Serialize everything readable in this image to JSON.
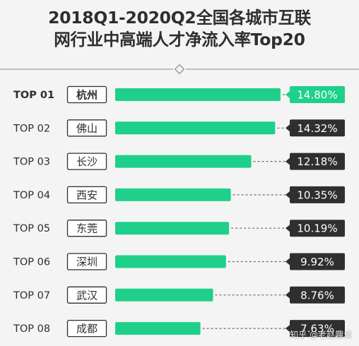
{
  "title": {
    "line1": "2018Q1-2020Q2全国各城市互联",
    "line2": "网行业中高端人才净流入率Top20"
  },
  "watermark": "知乎 @老赵趣谈",
  "colors": {
    "bar": "#1ed08a",
    "bar_highlight": "#1ed08a",
    "value_box": "#2f2f2f",
    "value_box_highlight": "#1ed08a",
    "city_box_border": "#2f2f2f",
    "dashed_line": "#6a6a6a",
    "background": "#f4f4f4"
  },
  "chart_data": {
    "type": "bar",
    "orientation": "horizontal",
    "ranks": [
      "TOP 01",
      "TOP 02",
      "TOP 03",
      "TOP 04",
      "TOP 05",
      "TOP 06",
      "TOP 07",
      "TOP 08"
    ],
    "categories": [
      "杭州",
      "佛山",
      "长沙",
      "西安",
      "东莞",
      "深圳",
      "武汉",
      "成都"
    ],
    "values": [
      14.8,
      14.32,
      12.18,
      10.35,
      10.19,
      9.92,
      8.76,
      7.63
    ],
    "value_labels": [
      "14.80%",
      "14.32%",
      "12.18%",
      "10.35%",
      "10.19%",
      "9.92%",
      "8.76%",
      "7.63%"
    ],
    "unit": "%",
    "highlight_index": 0,
    "xlim": [
      0,
      15.5
    ],
    "grid": false,
    "legend": "none"
  }
}
